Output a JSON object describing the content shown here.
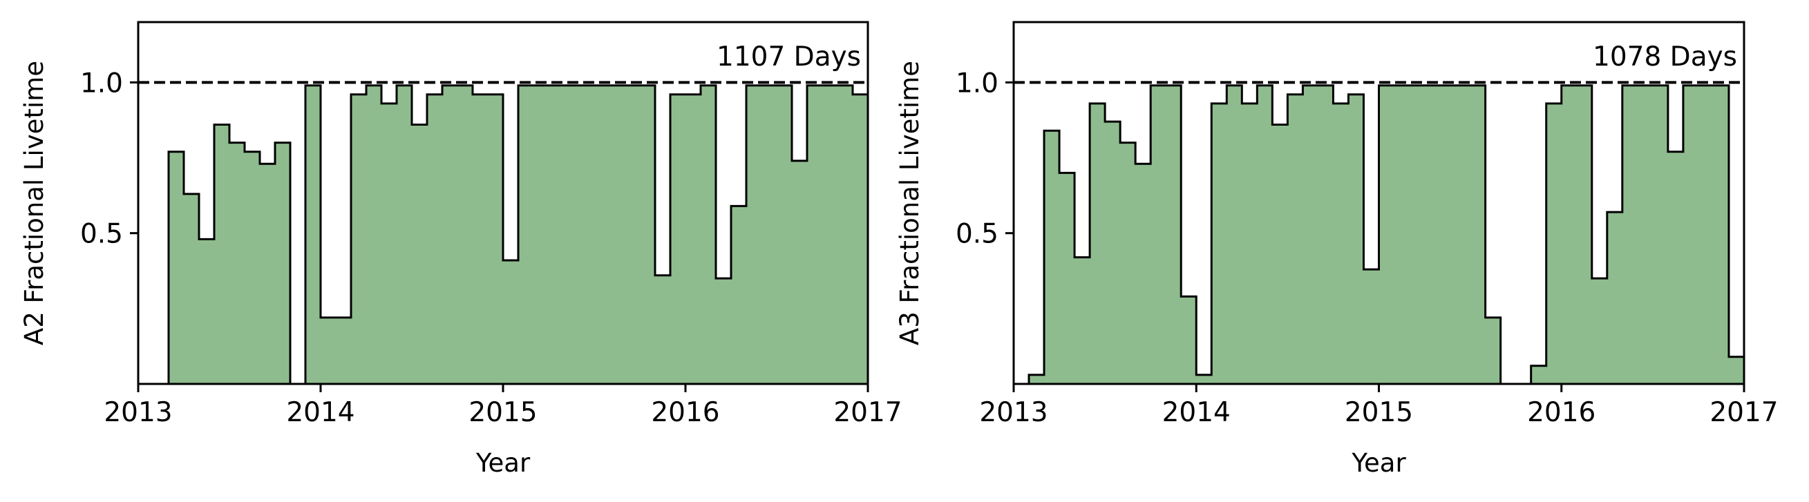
{
  "chart_data": [
    {
      "type": "area",
      "style": "step-histogram",
      "ylabel": "A2 Fractional Livetime",
      "xlabel": "Year",
      "annotation": "1107 Days",
      "xlim": [
        2013,
        2017
      ],
      "ylim": [
        0,
        1.2
      ],
      "xticks": [
        2013,
        2014,
        2015,
        2016,
        2017
      ],
      "xtick_labels": [
        "2013",
        "2014",
        "2015",
        "2016",
        "2017"
      ],
      "yticks": [
        0.5,
        1.0
      ],
      "ytick_labels": [
        "0.5",
        "1.0"
      ],
      "reference_line": 1.0,
      "bin_width": 0.0833,
      "series": [
        {
          "values": [
            0.0,
            0.0,
            0.77,
            0.63,
            0.48,
            0.86,
            0.8,
            0.77,
            0.73,
            0.8,
            0.0,
            0.99,
            0.22,
            0.22,
            0.96,
            0.99,
            0.93,
            0.99,
            0.86,
            0.96,
            0.99,
            0.99,
            0.96,
            0.96,
            0.41,
            0.99,
            0.99,
            0.99,
            0.99,
            0.99,
            0.99,
            0.99,
            0.99,
            0.99,
            0.36,
            0.96,
            0.96,
            0.99,
            0.35,
            0.59,
            0.99,
            0.99,
            0.99,
            0.74,
            0.99,
            0.99,
            0.99,
            0.96
          ]
        }
      ]
    },
    {
      "type": "area",
      "style": "step-histogram",
      "ylabel": "A3 Fractional Livetime",
      "xlabel": "Year",
      "annotation": "1078 Days",
      "xlim": [
        2013,
        2017
      ],
      "ylim": [
        0,
        1.2
      ],
      "xticks": [
        2013,
        2014,
        2015,
        2016,
        2017
      ],
      "xtick_labels": [
        "2013",
        "2014",
        "2015",
        "2016",
        "2017"
      ],
      "yticks": [
        0.5,
        1.0
      ],
      "ytick_labels": [
        "0.5",
        "1.0"
      ],
      "reference_line": 1.0,
      "bin_width": 0.0833,
      "series": [
        {
          "values": [
            0.0,
            0.03,
            0.84,
            0.7,
            0.42,
            0.93,
            0.87,
            0.8,
            0.73,
            0.99,
            0.99,
            0.29,
            0.03,
            0.93,
            0.99,
            0.93,
            0.99,
            0.86,
            0.96,
            0.99,
            0.99,
            0.93,
            0.96,
            0.38,
            0.99,
            0.99,
            0.99,
            0.99,
            0.99,
            0.99,
            0.99,
            0.22,
            0.0,
            0.0,
            0.06,
            0.93,
            0.99,
            0.99,
            0.35,
            0.57,
            0.99,
            0.99,
            0.99,
            0.77,
            0.99,
            0.99,
            0.99,
            0.09
          ]
        }
      ]
    }
  ],
  "colors": {
    "fill": "#8fbc8f",
    "edge": "#000000",
    "reference_line": "#000000",
    "background": "#ffffff"
  }
}
